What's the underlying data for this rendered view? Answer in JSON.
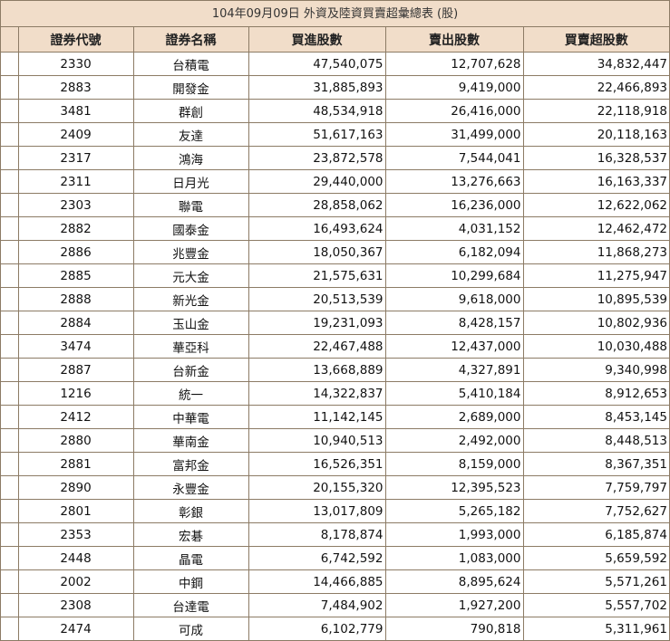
{
  "title": "104年09月09日 外資及陸資買賣超彙總表 (股)",
  "headers": [
    "證券代號",
    "證券名稱",
    "買進股數",
    "賣出股數",
    "買賣超股數"
  ],
  "rows": [
    {
      "code": "2330",
      "name": "台積電",
      "buy": "47,540,075",
      "sell": "12,707,628",
      "net": "34,832,447"
    },
    {
      "code": "2883",
      "name": "開發金",
      "buy": "31,885,893",
      "sell": "9,419,000",
      "net": "22,466,893"
    },
    {
      "code": "3481",
      "name": "群創",
      "buy": "48,534,918",
      "sell": "26,416,000",
      "net": "22,118,918"
    },
    {
      "code": "2409",
      "name": "友達",
      "buy": "51,617,163",
      "sell": "31,499,000",
      "net": "20,118,163"
    },
    {
      "code": "2317",
      "name": "鴻海",
      "buy": "23,872,578",
      "sell": "7,544,041",
      "net": "16,328,537"
    },
    {
      "code": "2311",
      "name": "日月光",
      "buy": "29,440,000",
      "sell": "13,276,663",
      "net": "16,163,337"
    },
    {
      "code": "2303",
      "name": "聯電",
      "buy": "28,858,062",
      "sell": "16,236,000",
      "net": "12,622,062"
    },
    {
      "code": "2882",
      "name": "國泰金",
      "buy": "16,493,624",
      "sell": "4,031,152",
      "net": "12,462,472"
    },
    {
      "code": "2886",
      "name": "兆豐金",
      "buy": "18,050,367",
      "sell": "6,182,094",
      "net": "11,868,273"
    },
    {
      "code": "2885",
      "name": "元大金",
      "buy": "21,575,631",
      "sell": "10,299,684",
      "net": "11,275,947"
    },
    {
      "code": "2888",
      "name": "新光金",
      "buy": "20,513,539",
      "sell": "9,618,000",
      "net": "10,895,539"
    },
    {
      "code": "2884",
      "name": "玉山金",
      "buy": "19,231,093",
      "sell": "8,428,157",
      "net": "10,802,936"
    },
    {
      "code": "3474",
      "name": "華亞科",
      "buy": "22,467,488",
      "sell": "12,437,000",
      "net": "10,030,488"
    },
    {
      "code": "2887",
      "name": "台新金",
      "buy": "13,668,889",
      "sell": "4,327,891",
      "net": "9,340,998"
    },
    {
      "code": "1216",
      "name": "統一",
      "buy": "14,322,837",
      "sell": "5,410,184",
      "net": "8,912,653"
    },
    {
      "code": "2412",
      "name": "中華電",
      "buy": "11,142,145",
      "sell": "2,689,000",
      "net": "8,453,145"
    },
    {
      "code": "2880",
      "name": "華南金",
      "buy": "10,940,513",
      "sell": "2,492,000",
      "net": "8,448,513"
    },
    {
      "code": "2881",
      "name": "富邦金",
      "buy": "16,526,351",
      "sell": "8,159,000",
      "net": "8,367,351"
    },
    {
      "code": "2890",
      "name": "永豐金",
      "buy": "20,155,320",
      "sell": "12,395,523",
      "net": "7,759,797"
    },
    {
      "code": "2801",
      "name": "彰銀",
      "buy": "13,017,809",
      "sell": "5,265,182",
      "net": "7,752,627"
    },
    {
      "code": "2353",
      "name": "宏碁",
      "buy": "8,178,874",
      "sell": "1,993,000",
      "net": "6,185,874"
    },
    {
      "code": "2448",
      "name": "晶電",
      "buy": "6,742,592",
      "sell": "1,083,000",
      "net": "5,659,592"
    },
    {
      "code": "2002",
      "name": "中鋼",
      "buy": "14,466,885",
      "sell": "8,895,624",
      "net": "5,571,261"
    },
    {
      "code": "2308",
      "name": "台達電",
      "buy": "7,484,902",
      "sell": "1,927,200",
      "net": "5,557,702"
    },
    {
      "code": "2474",
      "name": "可成",
      "buy": "6,102,779",
      "sell": "790,818",
      "net": "5,311,961"
    }
  ]
}
